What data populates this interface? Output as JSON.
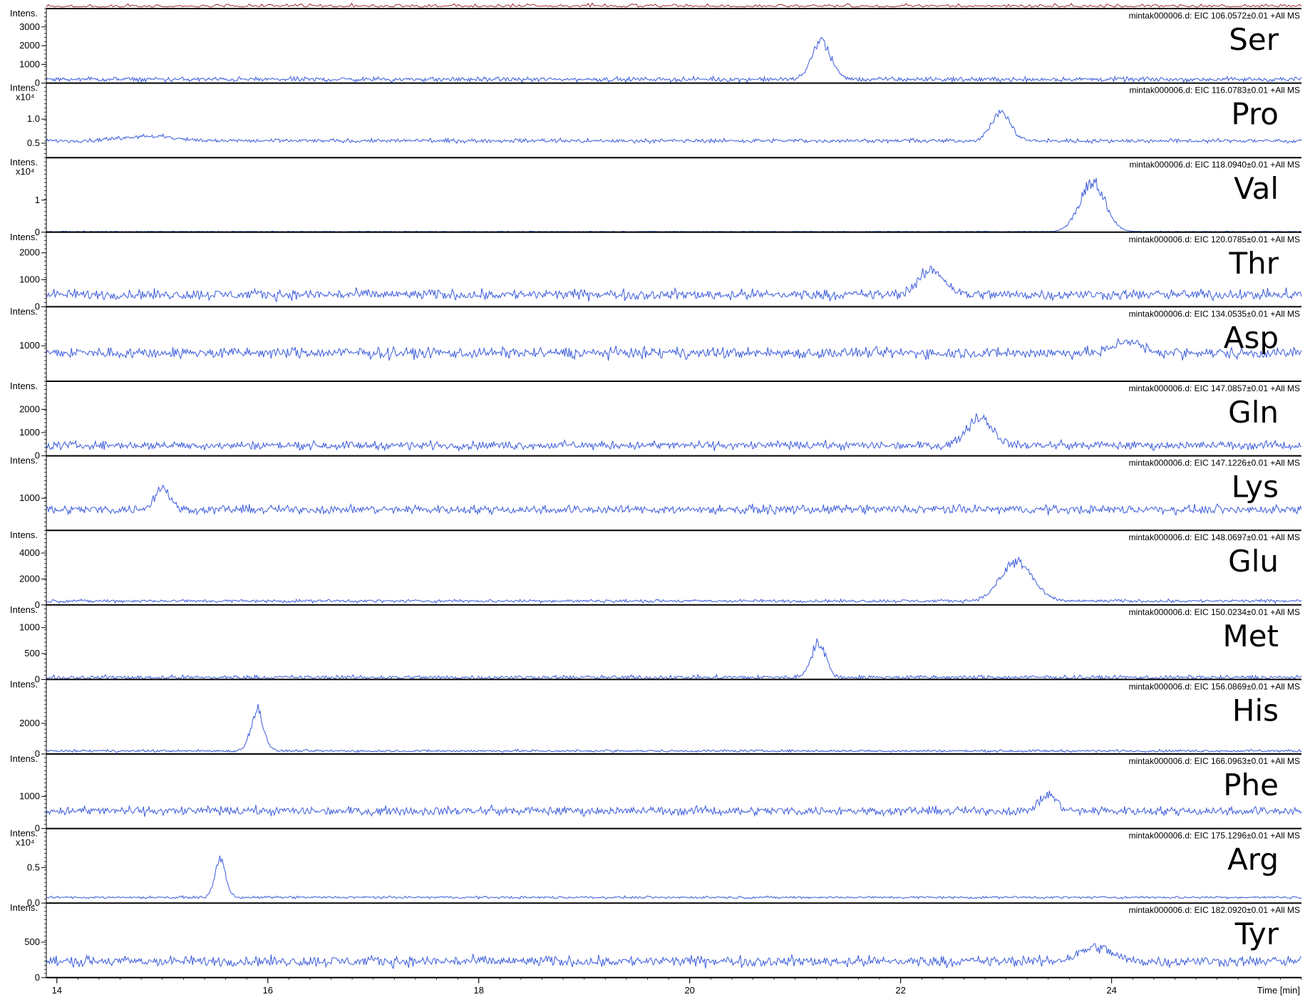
{
  "chart_data": {
    "type": "line",
    "xlabel": "Time [min]",
    "ylabel": "Intens.",
    "xlim": [
      13.9,
      25.8
    ],
    "x_ticks": [
      14,
      16,
      18,
      20,
      22,
      24
    ],
    "colors": {
      "trace": "#3b5bdb",
      "top_trace": "#a0282d",
      "axis": "#000000"
    },
    "panels": [
      {
        "name": "Ser",
        "trace": "mintak000006.d: EIC 106.0572±0.01 +All MS",
        "scale_label": "",
        "ylim": [
          0,
          3600
        ],
        "yticks": [
          {
            "v": 0,
            "label": "0"
          },
          {
            "v": 1000,
            "label": "1000"
          },
          {
            "v": 2000,
            "label": "2000"
          },
          {
            "v": 3000,
            "label": "3000"
          }
        ],
        "baseline": 200,
        "noise": 180,
        "peaks": [
          {
            "x": 21.25,
            "h": 2000,
            "w": 0.09
          }
        ]
      },
      {
        "name": "Pro",
        "trace": "mintak000006.d: EIC 116.0783±0.01 +All MS",
        "scale_label": "x10⁴",
        "ylim": [
          0.2,
          1.6
        ],
        "yticks": [
          {
            "v": 0.5,
            "label": "0.5"
          },
          {
            "v": 1.0,
            "label": "1.0"
          }
        ],
        "baseline": 0.55,
        "noise": 0.06,
        "peaks": [
          {
            "x": 22.95,
            "h": 0.6,
            "w": 0.09
          },
          {
            "x": 14.85,
            "h": 0.1,
            "w": 0.25
          }
        ]
      },
      {
        "name": "Val",
        "trace": "mintak000006.d: EIC 118.0940±0.01 +All MS",
        "scale_label": "x10⁴",
        "ylim": [
          0,
          2.1
        ],
        "yticks": [
          {
            "v": 0,
            "label": "0"
          },
          {
            "v": 1,
            "label": "1"
          }
        ],
        "baseline": 0.02,
        "noise": 0.015,
        "peaks": [
          {
            "x": 23.82,
            "h": 1.55,
            "w": 0.12
          }
        ]
      },
      {
        "name": "Thr",
        "trace": "mintak000006.d: EIC 120.0785±0.01 +All MS",
        "scale_label": "",
        "ylim": [
          0,
          2500
        ],
        "yticks": [
          {
            "v": 0,
            "label": "0"
          },
          {
            "v": 1000,
            "label": "1000"
          },
          {
            "v": 2000,
            "label": "2000"
          }
        ],
        "baseline": 450,
        "noise": 280,
        "peaks": [
          {
            "x": 22.3,
            "h": 900,
            "w": 0.12
          }
        ]
      },
      {
        "name": "Asp",
        "trace": "mintak000006.d: EIC 134.0535±0.01 +All MS",
        "scale_label": "",
        "ylim": [
          0,
          1900
        ],
        "yticks": [
          {
            "v": 1000,
            "label": "1000"
          }
        ],
        "baseline": 800,
        "noise": 230,
        "peaks": [
          {
            "x": 24.15,
            "h": 350,
            "w": 0.12
          }
        ]
      },
      {
        "name": "Gln",
        "trace": "mintak000006.d: EIC 147.0857±0.01 +All MS",
        "scale_label": "",
        "ylim": [
          0,
          2900
        ],
        "yticks": [
          {
            "v": 0,
            "label": "0"
          },
          {
            "v": 1000,
            "label": "1000"
          },
          {
            "v": 2000,
            "label": "2000"
          }
        ],
        "baseline": 450,
        "noise": 260,
        "peaks": [
          {
            "x": 22.75,
            "h": 1200,
            "w": 0.12
          }
        ]
      },
      {
        "name": "Lys",
        "trace": "mintak000006.d: EIC 147.1226±0.01 +All MS",
        "scale_label": "",
        "ylim": [
          0,
          2100
        ],
        "yticks": [
          {
            "v": 1000,
            "label": "1000"
          }
        ],
        "baseline": 650,
        "noise": 200,
        "peaks": [
          {
            "x": 15.0,
            "h": 700,
            "w": 0.07
          }
        ]
      },
      {
        "name": "Glu",
        "trace": "mintak000006.d: EIC 148.0697±0.01 +All MS",
        "scale_label": "",
        "ylim": [
          0,
          5200
        ],
        "yticks": [
          {
            "v": 0,
            "label": "0"
          },
          {
            "v": 2000,
            "label": "2000"
          },
          {
            "v": 4000,
            "label": "4000"
          }
        ],
        "baseline": 300,
        "noise": 180,
        "peaks": [
          {
            "x": 23.1,
            "h": 3000,
            "w": 0.15
          }
        ]
      },
      {
        "name": "Met",
        "trace": "mintak000006.d: EIC 150.0234±0.01 +All MS",
        "scale_label": "",
        "ylim": [
          0,
          1300
        ],
        "yticks": [
          {
            "v": 0,
            "label": "0"
          },
          {
            "v": 500,
            "label": "500"
          },
          {
            "v": 1000,
            "label": "1000"
          }
        ],
        "baseline": 40,
        "noise": 60,
        "peaks": [
          {
            "x": 21.22,
            "h": 650,
            "w": 0.07
          }
        ]
      },
      {
        "name": "His",
        "trace": "mintak000006.d: EIC 156.0869±0.01 +All MS",
        "scale_label": "",
        "ylim": [
          0,
          4400
        ],
        "yticks": [
          {
            "v": 0,
            "label": "0"
          },
          {
            "v": 2000,
            "label": "2000"
          }
        ],
        "baseline": 200,
        "noise": 120,
        "peaks": [
          {
            "x": 15.9,
            "h": 2700,
            "w": 0.06
          }
        ]
      },
      {
        "name": "Phe",
        "trace": "mintak000006.d: EIC 166.0963±0.01 +All MS",
        "scale_label": "",
        "ylim": [
          0,
          2100
        ],
        "yticks": [
          {
            "v": 0,
            "label": "0"
          },
          {
            "v": 1000,
            "label": "1000"
          }
        ],
        "baseline": 550,
        "noise": 200,
        "peaks": [
          {
            "x": 23.4,
            "h": 500,
            "w": 0.08
          }
        ]
      },
      {
        "name": "Arg",
        "trace": "mintak000006.d: EIC 175.1296±0.01 +All MS",
        "scale_label": "x10⁴",
        "ylim": [
          0,
          0.95
        ],
        "yticks": [
          {
            "v": 0,
            "label": "0.0"
          },
          {
            "v": 0.5,
            "label": "0.5"
          }
        ],
        "baseline": 0.08,
        "noise": 0.025,
        "peaks": [
          {
            "x": 15.55,
            "h": 0.55,
            "w": 0.05
          }
        ]
      },
      {
        "name": "Tyr",
        "trace": "mintak000006.d: EIC 182.0920±0.01 +All MS",
        "scale_label": "",
        "ylim": [
          0,
          950
        ],
        "yticks": [
          {
            "v": 0,
            "label": "0"
          },
          {
            "v": 500,
            "label": "500"
          }
        ],
        "baseline": 230,
        "noise": 110,
        "peaks": [
          {
            "x": 23.85,
            "h": 200,
            "w": 0.15
          }
        ]
      }
    ]
  }
}
